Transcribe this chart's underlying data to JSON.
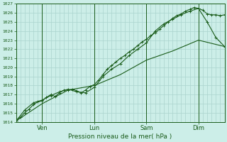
{
  "xlabel": "Pression niveau de la mer( hPa )",
  "ylim": [
    1014,
    1027
  ],
  "yticks": [
    1014,
    1015,
    1016,
    1017,
    1018,
    1019,
    1020,
    1021,
    1022,
    1023,
    1024,
    1025,
    1026,
    1027
  ],
  "background_color": "#cceee8",
  "grid_color": "#aad4ce",
  "line_color": "#1a5c1a",
  "xlim": [
    0,
    4.0
  ],
  "x_tick_positions": [
    0.5,
    1.5,
    2.5,
    3.5
  ],
  "x_tick_names": [
    "Ven",
    "Lun",
    "Sam",
    "Dim"
  ],
  "x_separator_positions": [
    0.0,
    0.5,
    1.5,
    2.5,
    3.5,
    4.0
  ],
  "line1_x": [
    0.0,
    0.083,
    0.167,
    0.25,
    0.333,
    0.417,
    0.5,
    0.583,
    0.667,
    0.75,
    0.833,
    0.917,
    1.0,
    1.083,
    1.167,
    1.25,
    1.333,
    1.417,
    1.5,
    1.583,
    1.667,
    1.75,
    1.833,
    1.917,
    2.0,
    2.083,
    2.167,
    2.25,
    2.333,
    2.417,
    2.5,
    2.583,
    2.667,
    2.75,
    2.833,
    2.917,
    3.0,
    3.083,
    3.167,
    3.25,
    3.333,
    3.417,
    3.5,
    3.583,
    3.667,
    3.75,
    3.833,
    3.917,
    4.0
  ],
  "line1_y": [
    1014.1,
    1014.5,
    1015.0,
    1015.4,
    1015.9,
    1016.2,
    1016.3,
    1016.7,
    1017.0,
    1016.8,
    1017.2,
    1017.5,
    1017.5,
    1017.6,
    1017.4,
    1017.2,
    1017.5,
    1017.9,
    1018.1,
    1018.6,
    1019.2,
    1019.8,
    1020.2,
    1020.6,
    1021.0,
    1021.3,
    1021.7,
    1022.0,
    1022.4,
    1022.8,
    1023.1,
    1023.5,
    1023.8,
    1024.2,
    1024.6,
    1025.0,
    1025.4,
    1025.7,
    1025.9,
    1026.2,
    1026.4,
    1026.6,
    1026.5,
    1026.3,
    1025.9,
    1025.8,
    1025.8,
    1025.7,
    1025.8
  ],
  "line2_x": [
    0.0,
    0.167,
    0.333,
    0.5,
    0.667,
    0.833,
    1.0,
    1.167,
    1.333,
    1.5,
    1.667,
    1.833,
    2.0,
    2.167,
    2.333,
    2.5,
    2.667,
    2.833,
    3.0,
    3.167,
    3.333,
    3.5,
    3.667,
    3.833,
    4.0
  ],
  "line2_y": [
    1014.1,
    1015.3,
    1016.1,
    1016.4,
    1016.9,
    1017.3,
    1017.6,
    1017.3,
    1017.2,
    1017.8,
    1019.0,
    1019.8,
    1020.4,
    1021.3,
    1022.0,
    1022.7,
    1024.0,
    1024.8,
    1025.3,
    1025.8,
    1026.2,
    1026.5,
    1025.0,
    1023.3,
    1022.3
  ],
  "line3_x": [
    0.0,
    0.5,
    1.0,
    1.5,
    2.0,
    2.5,
    3.0,
    3.5,
    4.0
  ],
  "line3_y": [
    1014.1,
    1016.0,
    1017.5,
    1018.0,
    1019.2,
    1020.8,
    1021.8,
    1023.0,
    1022.3
  ]
}
